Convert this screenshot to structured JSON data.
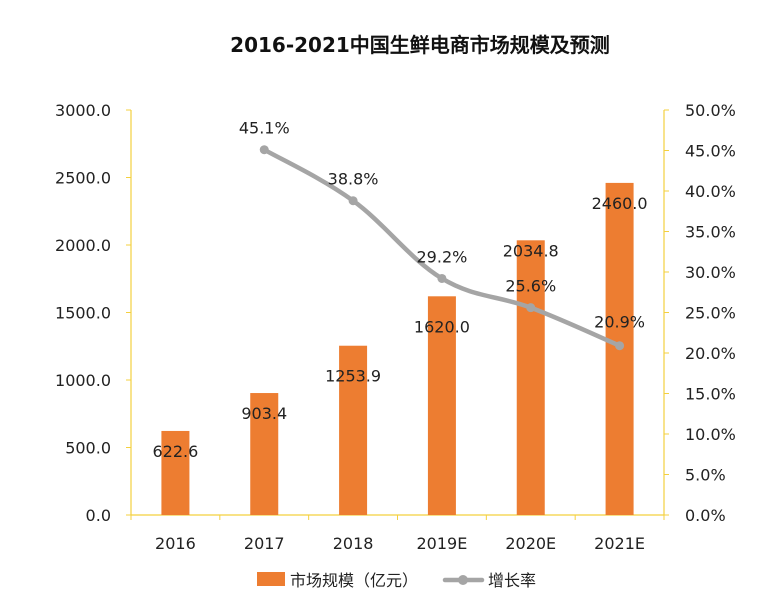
{
  "chart_data": {
    "type": "bar+line",
    "title": "2016-2021中国生鲜电商市场规模及预测",
    "categories": [
      "2016",
      "2017",
      "2018",
      "2019E",
      "2020E",
      "2021E"
    ],
    "series": [
      {
        "name": "市场规模（亿元）",
        "type": "bar",
        "axis": "left",
        "color": "#ED7D31",
        "values": [
          622.6,
          903.4,
          1253.9,
          1620.0,
          2034.8,
          2460.0
        ],
        "labels": [
          "622.6",
          "903.4",
          "1253.9",
          "1620.0",
          "2034.8",
          "2460.0"
        ]
      },
      {
        "name": "增长率",
        "type": "line",
        "axis": "right",
        "color": "#A5A5A5",
        "values": [
          null,
          45.1,
          38.8,
          29.2,
          25.6,
          20.9
        ],
        "labels": [
          "",
          "45.1%",
          "38.8%",
          "29.2%",
          "25.6%",
          "20.9%"
        ]
      }
    ],
    "y_left": {
      "min": 0,
      "max": 3000,
      "ticks": [
        "0.0",
        "500.0",
        "1000.0",
        "1500.0",
        "2000.0",
        "2500.0",
        "3000.0"
      ],
      "tick_values": [
        0,
        500,
        1000,
        1500,
        2000,
        2500,
        3000
      ]
    },
    "y_right": {
      "min": 0,
      "max": 50,
      "ticks": [
        "0.0%",
        "5.0%",
        "10.0%",
        "15.0%",
        "20.0%",
        "25.0%",
        "30.0%",
        "35.0%",
        "40.0%",
        "45.0%",
        "50.0%"
      ],
      "tick_values": [
        0,
        5,
        10,
        15,
        20,
        25,
        30,
        35,
        40,
        45,
        50
      ]
    },
    "axis_color": "#F4D03F",
    "legend_position": "bottom"
  }
}
